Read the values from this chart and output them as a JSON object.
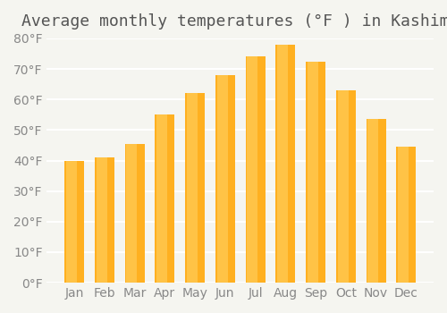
{
  "title": "Average monthly temperatures (°F ) in Kashima",
  "months": [
    "Jan",
    "Feb",
    "Mar",
    "Apr",
    "May",
    "Jun",
    "Jul",
    "Aug",
    "Sep",
    "Oct",
    "Nov",
    "Dec"
  ],
  "values": [
    40,
    41,
    45.5,
    55,
    62,
    68,
    74,
    78,
    72.5,
    63,
    53.5,
    44.5
  ],
  "bar_color_top": "#FFA500",
  "bar_color_gradient_start": "#FFD580",
  "ylim": [
    0,
    80
  ],
  "yticks": [
    0,
    10,
    20,
    30,
    40,
    50,
    60,
    70,
    80
  ],
  "ylabel_suffix": "°F",
  "background_color": "#f5f5f0",
  "grid_color": "#ffffff",
  "title_fontsize": 13,
  "tick_fontsize": 10,
  "bar_edge_color": "none"
}
